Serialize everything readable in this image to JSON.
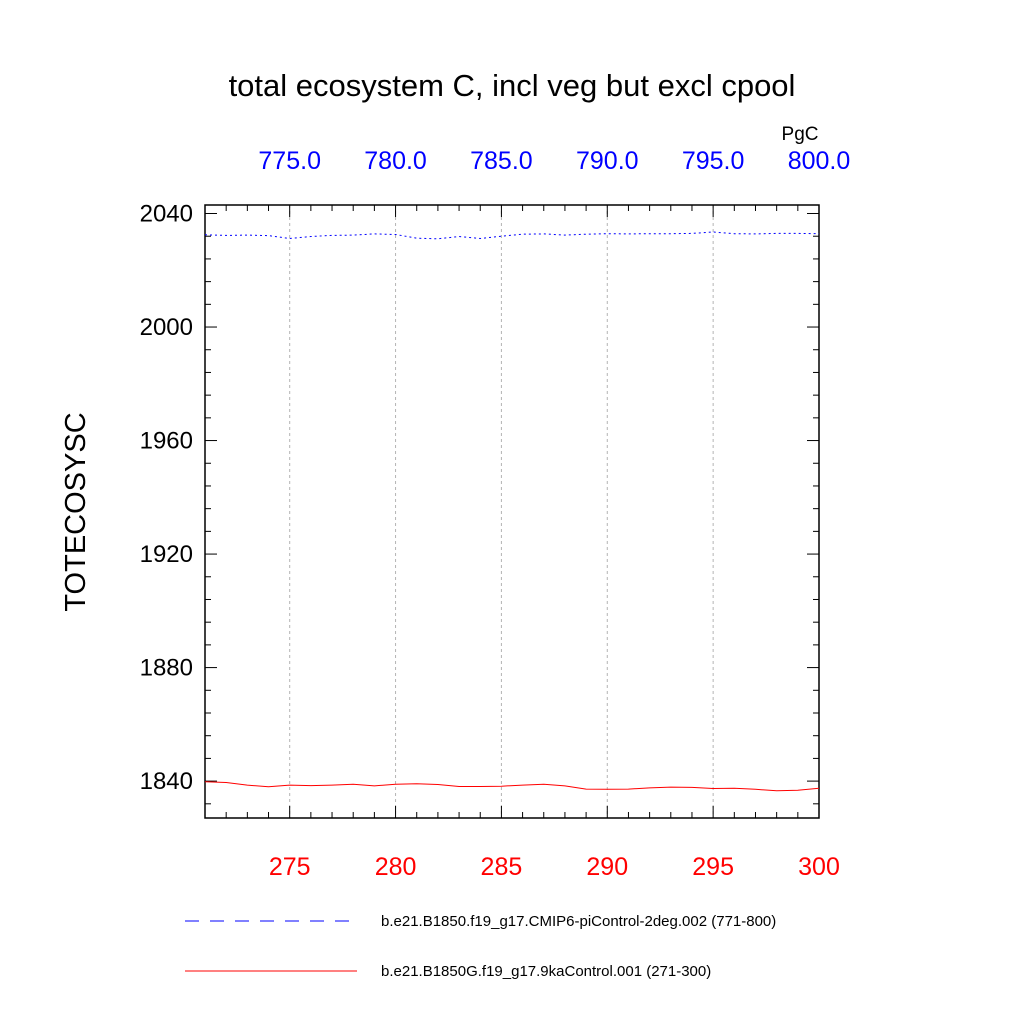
{
  "chart_data": {
    "type": "line",
    "title": "total ecosystem C, incl veg but excl cpool",
    "units": "PgC",
    "ylabel": "TOTECOSYSC",
    "ylim": [
      1827,
      2043
    ],
    "yticks": [
      "1840",
      "1880",
      "1920",
      "1960",
      "2000",
      "2040"
    ],
    "yticks_values": [
      1840,
      1880,
      1920,
      1960,
      2000,
      2040
    ],
    "bottom_axis": {
      "xlim": [
        271,
        300
      ],
      "ticks": [
        "275",
        "280",
        "285",
        "290",
        "295",
        "300"
      ],
      "ticks_values": [
        275,
        280,
        285,
        290,
        295,
        300
      ],
      "color": "#ff0000"
    },
    "top_axis": {
      "xlim": [
        771,
        800
      ],
      "ticks": [
        "775.0",
        "780.0",
        "785.0",
        "790.0",
        "795.0",
        "800.0"
      ],
      "ticks_values": [
        775,
        780,
        785,
        790,
        795,
        800
      ],
      "color": "#0000ff"
    },
    "grid": "vertical dashed at major x ticks",
    "legend_position": "bottom",
    "series": [
      {
        "name": "b.e21.B1850.f19_g17.CMIP6-piControl-2deg.002 (771-800)",
        "axis": "top",
        "color": "#0000ff",
        "dash": "dashed",
        "x": [
          771,
          772,
          773,
          774,
          775,
          776,
          777,
          778,
          779,
          780,
          781,
          782,
          783,
          784,
          785,
          786,
          787,
          788,
          789,
          790,
          791,
          792,
          793,
          794,
          795,
          796,
          797,
          798,
          799,
          800
        ],
        "values": [
          2032.5,
          2032.3,
          2032.4,
          2032.2,
          2031.2,
          2031.9,
          2032.3,
          2032.4,
          2032.8,
          2032.6,
          2031.3,
          2031.1,
          2031.9,
          2031.2,
          2032.0,
          2032.7,
          2032.8,
          2032.4,
          2032.7,
          2032.9,
          2032.8,
          2032.9,
          2032.9,
          2033.0,
          2033.5,
          2032.9,
          2032.8,
          2033.0,
          2033.0,
          2032.9
        ]
      },
      {
        "name": "b.e21.B1850G.f19_g17.9kaControl.001 (271-300)",
        "axis": "bottom",
        "color": "#ff0000",
        "dash": "solid",
        "x": [
          271,
          272,
          273,
          274,
          275,
          276,
          277,
          278,
          279,
          280,
          281,
          282,
          283,
          284,
          285,
          286,
          287,
          288,
          289,
          290,
          291,
          292,
          293,
          294,
          295,
          296,
          297,
          298,
          299,
          300
        ],
        "values": [
          1839.8,
          1839.5,
          1838.6,
          1838.0,
          1838.6,
          1838.4,
          1838.6,
          1838.9,
          1838.3,
          1838.9,
          1839.1,
          1838.8,
          1838.1,
          1838.1,
          1838.2,
          1838.6,
          1838.9,
          1838.3,
          1837.2,
          1837.1,
          1837.2,
          1837.6,
          1837.9,
          1837.8,
          1837.4,
          1837.5,
          1837.1,
          1836.6,
          1836.8,
          1837.5
        ]
      }
    ]
  }
}
